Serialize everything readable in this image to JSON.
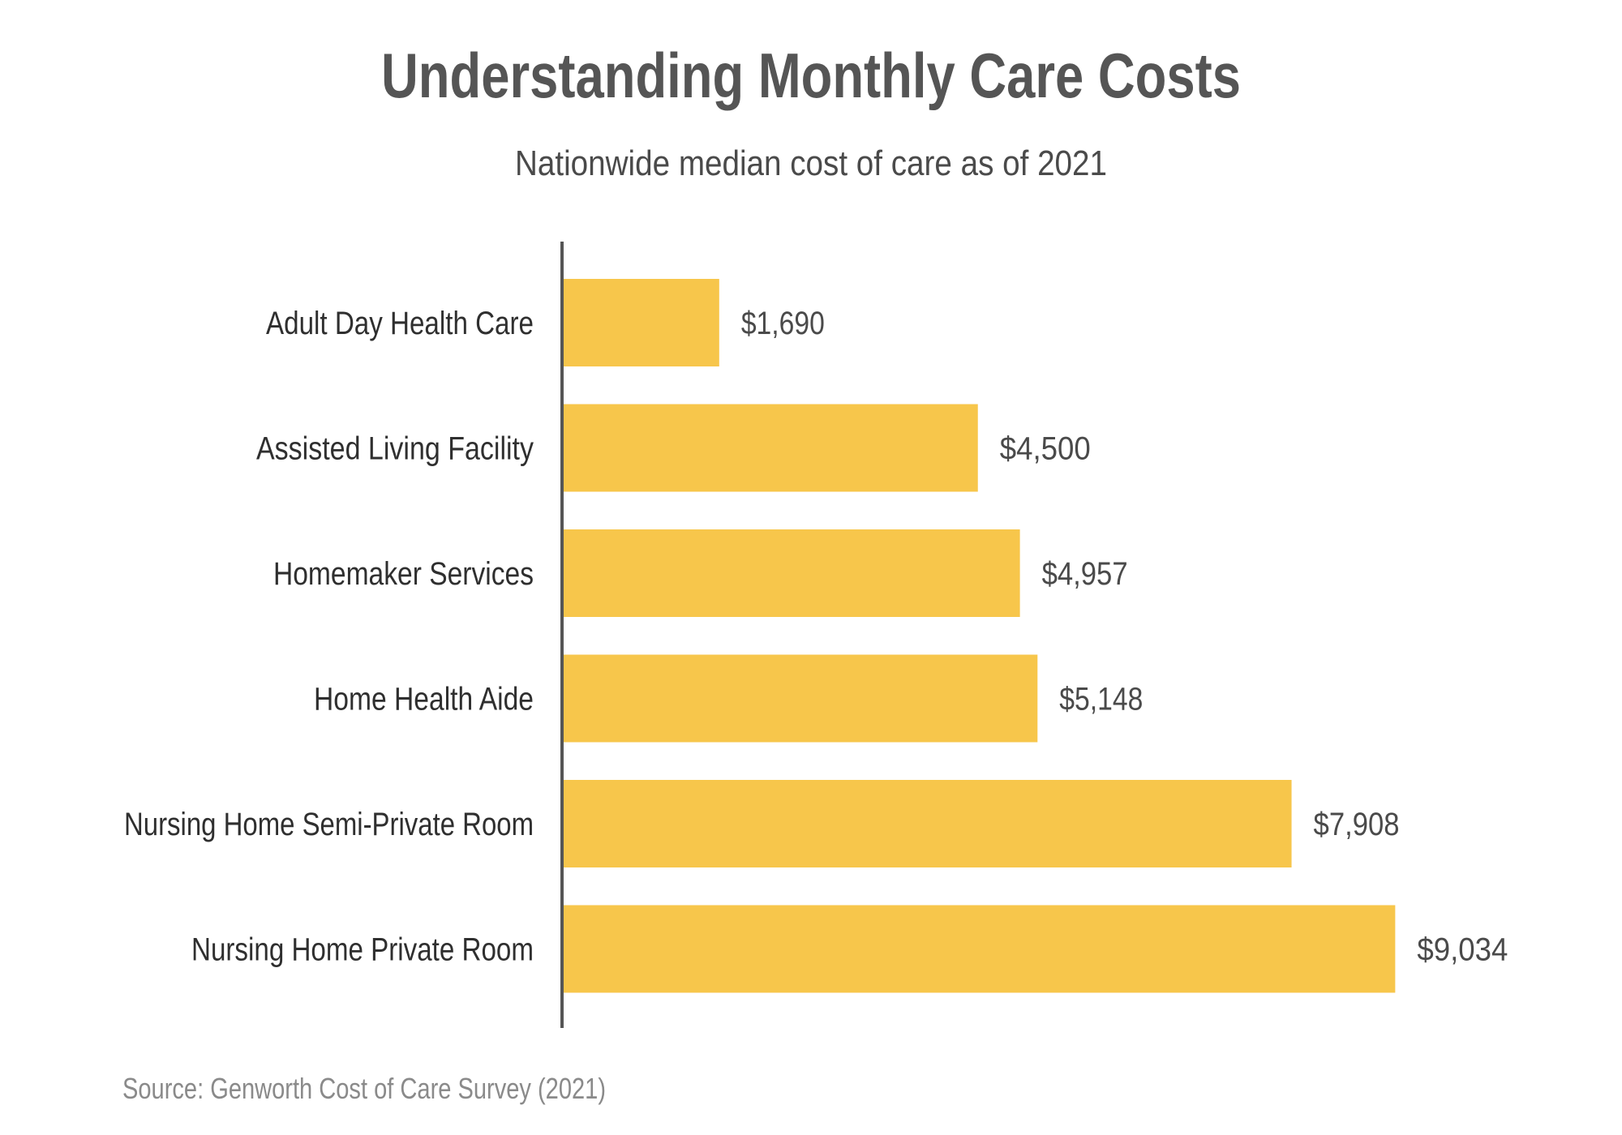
{
  "chart_data": {
    "type": "bar",
    "orientation": "horizontal",
    "title": "Understanding Monthly Care Costs",
    "subtitle": "Nationwide median cost of care as of 2021",
    "categories": [
      "Adult Day Health Care",
      "Assisted Living Facility",
      "Homemaker Services",
      "Home Health Aide",
      "Nursing Home Semi-Private Room",
      "Nursing Home Private Room"
    ],
    "values": [
      1690,
      4500,
      4957,
      5148,
      7908,
      9034
    ],
    "value_labels": [
      "$1,690",
      "$4,500",
      "$4,957",
      "$5,148",
      "$7,908",
      "$9,034"
    ],
    "xlim": [
      0,
      12000
    ],
    "grid": false,
    "legend": "none",
    "source": "Source: Genworth Cost of Care Survey (2021)"
  },
  "colors": {
    "bar": "#F7C64B",
    "axis": "#555555"
  }
}
